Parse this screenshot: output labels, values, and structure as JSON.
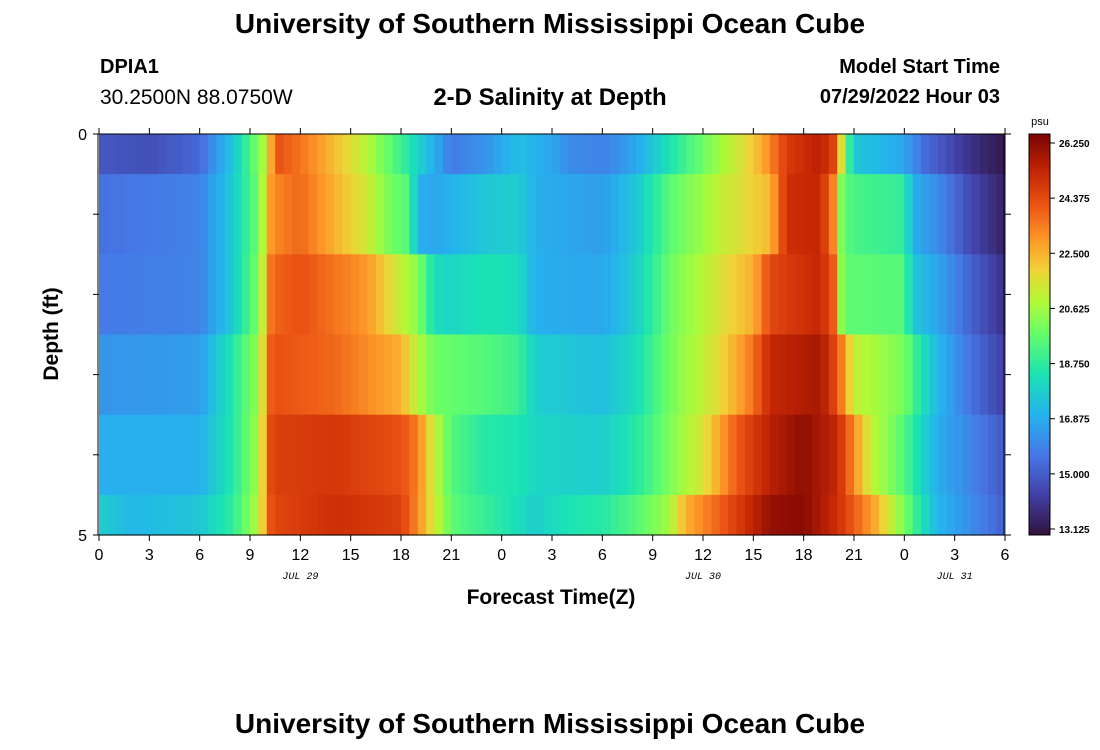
{
  "header": {
    "title": "University of Southern Mississippi Ocean Cube",
    "station": "DPIA1",
    "coords": "30.2500N  88.0750W",
    "subtitle": "2-D Salinity at Depth",
    "model_start_label": "Model Start Time",
    "model_start_value": "07/29/2022 Hour 03"
  },
  "footer": {
    "title": "University of Southern Mississippi Ocean Cube"
  },
  "chart_data": {
    "type": "heatmap",
    "xlabel": "Forecast Time(Z)",
    "ylabel": "Depth (ft)",
    "y_range": [
      0,
      5
    ],
    "y_tick_labels": [
      "0",
      "5"
    ],
    "x_tick_labels": [
      "0",
      "3",
      "6",
      "9",
      "12",
      "15",
      "18",
      "21",
      "0",
      "3",
      "6",
      "9",
      "12",
      "15",
      "18",
      "21",
      "0",
      "3",
      "6"
    ],
    "x_range_hours": [
      0,
      54
    ],
    "date_labels": [
      {
        "label": "JUL 29",
        "at_hour": 12
      },
      {
        "label": "JUL 30",
        "at_hour": 36
      },
      {
        "label": "JUL 31",
        "at_hour": 51
      }
    ],
    "colorbar": {
      "unit": "psu",
      "min": 13.125,
      "max": 26.25,
      "tick_labels": [
        "26.250",
        "24.375",
        "22.500",
        "20.625",
        "18.750",
        "16.875",
        "15.000",
        "13.125"
      ]
    },
    "depth_bands": [
      0.0,
      0.5,
      1.5,
      2.5,
      3.5,
      4.5,
      5.0
    ],
    "row_keyframes": [
      [
        [
          0,
          15.0
        ],
        [
          3,
          14.8
        ],
        [
          6,
          15.4
        ],
        [
          8,
          17.6
        ],
        [
          9,
          19.2
        ],
        [
          10,
          21.0
        ],
        [
          10.5,
          24.0
        ],
        [
          12,
          23.4
        ],
        [
          14,
          22.2
        ],
        [
          16,
          20.8
        ],
        [
          18,
          19.0
        ],
        [
          20,
          17.0
        ],
        [
          21,
          15.8
        ],
        [
          23,
          16.4
        ],
        [
          25,
          17.4
        ],
        [
          27,
          16.8
        ],
        [
          28,
          16.2
        ],
        [
          30,
          16.0
        ],
        [
          32,
          16.8
        ],
        [
          34,
          18.4
        ],
        [
          36,
          19.8
        ],
        [
          38,
          21.2
        ],
        [
          39.5,
          22.4
        ],
        [
          41,
          24.5
        ],
        [
          43,
          25.2
        ],
        [
          44,
          24.0
        ],
        [
          44.3,
          21.0
        ],
        [
          44.6,
          19.5
        ],
        [
          45,
          17.6
        ],
        [
          48,
          16.8
        ],
        [
          49,
          15.6
        ],
        [
          52,
          14.0
        ],
        [
          54,
          13.3
        ]
      ],
      [
        [
          0,
          15.6
        ],
        [
          6,
          16.0
        ],
        [
          8,
          17.8
        ],
        [
          9.5,
          19.8
        ],
        [
          10.3,
          23.0
        ],
        [
          12,
          23.6
        ],
        [
          14,
          22.4
        ],
        [
          16,
          21.2
        ],
        [
          17.5,
          19.8
        ],
        [
          18.5,
          19.4
        ],
        [
          19,
          17.0
        ],
        [
          20,
          16.8
        ],
        [
          23,
          17.6
        ],
        [
          25,
          17.8
        ],
        [
          26,
          17.0
        ],
        [
          30,
          16.6
        ],
        [
          32,
          17.6
        ],
        [
          34,
          19.5
        ],
        [
          37,
          21.0
        ],
        [
          40,
          22.2
        ],
        [
          41,
          24.8
        ],
        [
          43,
          25.0
        ],
        [
          44,
          22.5
        ],
        [
          44.3,
          19.6
        ],
        [
          45,
          19.2
        ],
        [
          48,
          18.8
        ],
        [
          48.5,
          17.0
        ],
        [
          50,
          16.2
        ],
        [
          52,
          14.6
        ],
        [
          54,
          13.6
        ]
      ],
      [
        [
          0,
          15.8
        ],
        [
          6,
          16.0
        ],
        [
          8,
          17.8
        ],
        [
          9.5,
          20.0
        ],
        [
          10.3,
          23.6
        ],
        [
          12,
          24.0
        ],
        [
          16,
          22.8
        ],
        [
          18,
          21.0
        ],
        [
          19,
          20.2
        ],
        [
          20,
          18.2
        ],
        [
          21,
          18.0
        ],
        [
          23,
          18.4
        ],
        [
          25,
          18.2
        ],
        [
          26,
          17.0
        ],
        [
          30,
          16.8
        ],
        [
          32,
          17.8
        ],
        [
          34,
          19.8
        ],
        [
          37,
          21.4
        ],
        [
          39,
          22.4
        ],
        [
          40,
          24.2
        ],
        [
          43,
          25.0
        ],
        [
          44,
          23.4
        ],
        [
          44.3,
          19.6
        ],
        [
          48,
          19.4
        ],
        [
          48.5,
          17.6
        ],
        [
          50,
          16.8
        ],
        [
          52,
          15.2
        ],
        [
          54,
          14.0
        ]
      ],
      [
        [
          0,
          16.4
        ],
        [
          6,
          16.6
        ],
        [
          8,
          18.6
        ],
        [
          9.5,
          20.4
        ],
        [
          10.3,
          24.0
        ],
        [
          14,
          23.6
        ],
        [
          18,
          22.4
        ],
        [
          19,
          20.8
        ],
        [
          20,
          19.8
        ],
        [
          23,
          19.4
        ],
        [
          25,
          19.0
        ],
        [
          26,
          17.8
        ],
        [
          30,
          17.4
        ],
        [
          32,
          18.2
        ],
        [
          34,
          19.9
        ],
        [
          37,
          21.6
        ],
        [
          39,
          23.4
        ],
        [
          40,
          25.0
        ],
        [
          43,
          25.5
        ],
        [
          44,
          24.0
        ],
        [
          45,
          21.0
        ],
        [
          48,
          20.0
        ],
        [
          49,
          18.4
        ],
        [
          50,
          17.2
        ],
        [
          52,
          15.6
        ],
        [
          54,
          14.4
        ]
      ],
      [
        [
          0,
          17.0
        ],
        [
          6,
          17.0
        ],
        [
          8,
          18.6
        ],
        [
          9.5,
          20.6
        ],
        [
          10.3,
          24.4
        ],
        [
          14,
          24.6
        ],
        [
          18,
          24.0
        ],
        [
          19,
          23.2
        ],
        [
          20,
          21.0
        ],
        [
          21,
          19.4
        ],
        [
          23,
          18.6
        ],
        [
          25,
          18.4
        ],
        [
          26,
          18.0
        ],
        [
          30,
          17.8
        ],
        [
          32,
          18.6
        ],
        [
          34,
          20.0
        ],
        [
          36,
          21.4
        ],
        [
          38,
          23.8
        ],
        [
          40,
          25.2
        ],
        [
          42,
          25.9
        ],
        [
          44,
          25.0
        ],
        [
          45,
          23.0
        ],
        [
          46,
          21.0
        ],
        [
          48,
          19.4
        ],
        [
          49,
          18.0
        ],
        [
          50,
          17.0
        ],
        [
          52,
          16.0
        ],
        [
          54,
          15.0
        ]
      ],
      [
        [
          0,
          17.8
        ],
        [
          2,
          17.2
        ],
        [
          6,
          17.6
        ],
        [
          8,
          18.8
        ],
        [
          9.5,
          20.8
        ],
        [
          10.3,
          24.2
        ],
        [
          14,
          24.8
        ],
        [
          18,
          24.4
        ],
        [
          19,
          23.0
        ],
        [
          20,
          21.2
        ],
        [
          21,
          19.6
        ],
        [
          22,
          19.2
        ],
        [
          24,
          18.6
        ],
        [
          26,
          17.8
        ],
        [
          28,
          18.4
        ],
        [
          30,
          18.6
        ],
        [
          32,
          19.4
        ],
        [
          34,
          20.6
        ],
        [
          35,
          22.4
        ],
        [
          38,
          24.4
        ],
        [
          40,
          25.8
        ],
        [
          42,
          26.0
        ],
        [
          44,
          24.8
        ],
        [
          46,
          22.8
        ],
        [
          48,
          20.0
        ],
        [
          49,
          18.4
        ],
        [
          50,
          17.2
        ],
        [
          52,
          16.2
        ],
        [
          54,
          15.2
        ]
      ]
    ]
  }
}
